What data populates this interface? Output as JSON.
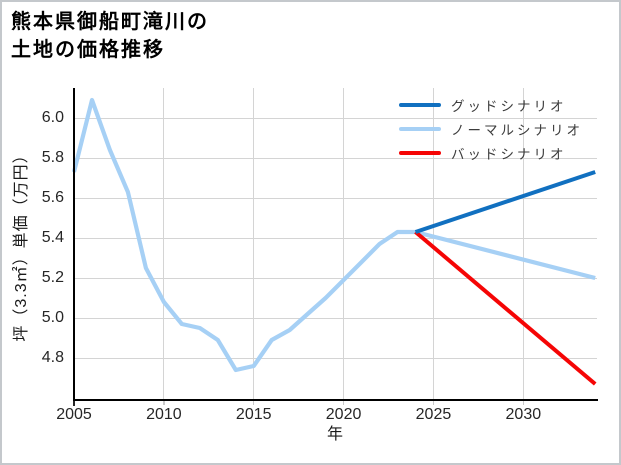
{
  "title": {
    "line1": "熊本県御船町滝川の",
    "line2": "土地の価格推移"
  },
  "chart_data": {
    "type": "line",
    "title": "熊本県御船町滝川の土地の価格推移",
    "xlabel": "年",
    "ylabel": "坪（3.3㎡）単価（万円）",
    "x_ticks": [
      2005,
      2010,
      2015,
      2020,
      2025,
      2030
    ],
    "y_ticks": [
      6.0,
      5.8,
      5.6,
      5.4,
      5.2,
      5.0,
      4.8
    ],
    "xlim": [
      2005,
      2034.1
    ],
    "ylim": [
      4.59,
      6.15
    ],
    "grid": true,
    "legend_position": "upper right",
    "series": [
      {
        "name": "グッドシナリオ",
        "color": "#1170c0",
        "x": [
          2024,
          2034
        ],
        "values": [
          5.43,
          5.73
        ]
      },
      {
        "name": "ノーマルシナリオ",
        "color": "#a6d0f5",
        "x": [
          2005,
          2006,
          2007,
          2008,
          2009,
          2010,
          2011,
          2012,
          2013,
          2014,
          2015,
          2016,
          2017,
          2018,
          2019,
          2020,
          2021,
          2022,
          2023,
          2024,
          2034
        ],
        "values": [
          5.73,
          6.09,
          5.84,
          5.63,
          5.25,
          5.08,
          4.97,
          4.95,
          4.89,
          4.74,
          4.76,
          4.89,
          4.94,
          5.02,
          5.1,
          5.19,
          5.28,
          5.37,
          5.43,
          5.43,
          5.2
        ]
      },
      {
        "name": "バッドシナリオ",
        "color": "#f50505",
        "x": [
          2024,
          2034
        ],
        "values": [
          5.43,
          4.67
        ]
      }
    ]
  },
  "colors": {
    "grid": "#d4d4d4",
    "axis": "#000000",
    "tick_text": "#262626",
    "legend_text": "#3c3c3c",
    "frame_border": "#c4c8cc"
  }
}
